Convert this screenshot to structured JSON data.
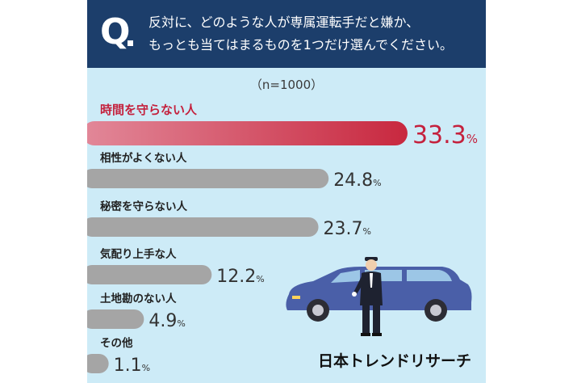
{
  "question": {
    "mark": "Q",
    "line1": "反対に、どのような人が専属運転手だと嫌か、",
    "line2": "もっとも当てはまるものを1つだけ選んでください。"
  },
  "sample_label": "（n=1000）",
  "brand": "日本トレンドリサーチ",
  "colors": {
    "header_bg": "#1c3e6b",
    "panel_bg": "#cdebf7",
    "highlight_start": "#e28899",
    "highlight_end": "#c8283f",
    "bar_gray": "#a5a5a5",
    "highlight_text": "#c4213d",
    "value_text": "#333333"
  },
  "chart_data": {
    "type": "bar",
    "orientation": "horizontal",
    "categories": [
      "時間を守らない人",
      "相性がよくない人",
      "秘密を守らない人",
      "気配り上手な人",
      "土地勘のない人",
      "その他"
    ],
    "values": [
      33.3,
      24.8,
      23.7,
      12.2,
      4.9,
      1.1
    ],
    "value_labels": [
      "33.3",
      "24.8",
      "23.7",
      "12.2",
      "4.9",
      "1.1"
    ],
    "unit": "%",
    "highlight_index": 0,
    "title": "",
    "xlabel": "",
    "ylabel": ""
  }
}
